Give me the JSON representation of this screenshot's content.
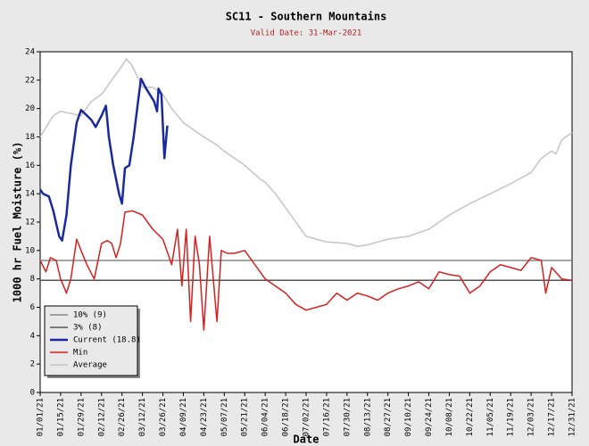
{
  "chart_data": {
    "type": "line",
    "title": "SC11 - Southern Mountains",
    "subtitle": "Valid Date: 31-Mar-2021",
    "y_label": "1000 hr Fuel Moisture (%)",
    "x_label": "Date",
    "ylim": [
      0,
      24
    ],
    "yticks": [
      0,
      2,
      4,
      6,
      8,
      10,
      12,
      14,
      16,
      18,
      20,
      22,
      24
    ],
    "xlim": [
      "01/01/21",
      "12/31/21"
    ],
    "xticks": [
      "01/01/21",
      "01/15/21",
      "01/29/21",
      "02/12/21",
      "02/26/21",
      "03/12/21",
      "03/26/21",
      "04/09/21",
      "04/23/21",
      "05/07/21",
      "05/21/21",
      "06/04/21",
      "06/18/21",
      "07/02/21",
      "07/16/21",
      "07/30/21",
      "08/13/21",
      "08/27/21",
      "09/10/21",
      "09/24/21",
      "10/08/21",
      "10/22/21",
      "11/05/21",
      "11/19/21",
      "12/03/21",
      "12/17/21",
      "12/31/21"
    ],
    "legend": "lower left",
    "series": [
      {
        "name": "10% (9)",
        "color": "#888888",
        "width": 1.5,
        "x": [
          "01/01/21",
          "12/31/21"
        ],
        "values": [
          9.3,
          9.3
        ]
      },
      {
        "name": "3% (8)",
        "color": "#555555",
        "width": 1.5,
        "x": [
          "01/01/21",
          "12/31/21"
        ],
        "values": [
          7.9,
          7.9
        ]
      },
      {
        "name": "Current (18.8)",
        "color": "#1a2a9c",
        "width": 2.5,
        "x": [
          "01/01/21",
          "01/03/21",
          "01/07/21",
          "01/10/21",
          "01/14/21",
          "01/16/21",
          "01/19/21",
          "01/22/21",
          "01/26/21",
          "01/29/21",
          "02/01/21",
          "02/05/21",
          "02/08/21",
          "02/12/21",
          "02/15/21",
          "02/17/21",
          "02/20/21",
          "02/24/21",
          "02/26/21",
          "02/28/21",
          "03/03/21",
          "03/06/21",
          "03/09/21",
          "03/11/21",
          "03/14/21",
          "03/17/21",
          "03/20/21",
          "03/22/21",
          "03/23/21",
          "03/25/21",
          "03/27/21",
          "03/29/21"
        ],
        "values": [
          14.3,
          14,
          13.8,
          12.8,
          11,
          10.7,
          12.5,
          16,
          19,
          19.9,
          19.6,
          19.2,
          18.7,
          19.5,
          20.2,
          18,
          16,
          14,
          13.3,
          15.8,
          16,
          18,
          20.5,
          22.1,
          21.5,
          21,
          20.5,
          19.8,
          21.4,
          21,
          16.5,
          18.8
        ]
      },
      {
        "name": "Min",
        "color": "#d42020",
        "width": 1.5,
        "x": [
          "01/01/21",
          "01/05/21",
          "01/08/21",
          "01/12/21",
          "01/15/21",
          "01/19/21",
          "01/22/21",
          "01/26/21",
          "01/29/21",
          "02/02/21",
          "02/07/21",
          "02/12/21",
          "02/16/21",
          "02/19/21",
          "02/22/21",
          "02/25/21",
          "02/28/21",
          "03/05/21",
          "03/12/21",
          "03/19/21",
          "03/26/21",
          "04/01/21",
          "04/05/21",
          "04/08/21",
          "04/11/21",
          "04/14/21",
          "04/17/21",
          "04/20/21",
          "04/23/21",
          "04/27/21",
          "05/02/21",
          "05/05/21",
          "05/09/21",
          "05/14/21",
          "05/21/21",
          "05/28/21",
          "06/04/21",
          "06/11/21",
          "06/18/21",
          "06/25/21",
          "07/02/21",
          "07/09/21",
          "07/16/21",
          "07/23/21",
          "07/30/21",
          "08/06/21",
          "08/13/21",
          "08/20/21",
          "08/27/21",
          "09/03/21",
          "09/10/21",
          "09/17/21",
          "09/24/21",
          "10/01/21",
          "10/08/21",
          "10/15/21",
          "10/22/21",
          "10/29/21",
          "11/05/21",
          "11/12/21",
          "11/19/21",
          "11/26/21",
          "12/03/21",
          "12/10/21",
          "12/13/21",
          "12/17/21",
          "12/24/21",
          "12/31/21"
        ],
        "values": [
          9.3,
          8.5,
          9.5,
          9.3,
          8,
          7,
          8,
          10.8,
          10,
          9,
          8,
          10.5,
          10.7,
          10.5,
          9.5,
          10.5,
          12.7,
          12.8,
          12.5,
          11.5,
          10.8,
          9,
          11.5,
          7.5,
          11.5,
          5,
          11,
          9,
          4.4,
          11,
          5,
          10,
          9.8,
          9.8,
          10,
          9,
          8,
          7.5,
          7,
          6.2,
          5.8,
          6,
          6.2,
          7,
          6.5,
          7,
          6.8,
          6.5,
          7,
          7.3,
          7.5,
          7.8,
          7.3,
          8.5,
          8.3,
          8.2,
          7,
          7.5,
          8.5,
          9,
          8.8,
          8.6,
          9.5,
          9.3,
          7,
          8.8,
          8,
          7.9
        ]
      },
      {
        "name": "Average",
        "color": "#c4c4c4",
        "width": 1.5,
        "x": [
          "01/01/21",
          "01/10/21",
          "01/15/21",
          "01/29/21",
          "02/05/21",
          "02/12/21",
          "02/19/21",
          "02/26/21",
          "03/01/21",
          "03/05/21",
          "03/12/21",
          "03/19/21",
          "03/26/21",
          "04/01/21",
          "04/09/21",
          "04/16/21",
          "04/23/21",
          "05/01/21",
          "05/07/21",
          "05/14/21",
          "05/21/21",
          "06/01/21",
          "06/04/21",
          "06/11/21",
          "06/18/21",
          "06/25/21",
          "07/02/21",
          "07/09/21",
          "07/16/21",
          "07/30/21",
          "08/06/21",
          "08/13/21",
          "08/20/21",
          "08/27/21",
          "09/10/21",
          "09/24/21",
          "10/08/21",
          "10/22/21",
          "11/05/21",
          "11/19/21",
          "12/03/21",
          "12/10/21",
          "12/17/21",
          "12/20/21",
          "12/24/21",
          "12/31/21"
        ],
        "values": [
          18,
          19.5,
          19.8,
          19.5,
          20.5,
          21,
          22,
          23,
          23.5,
          23,
          21.5,
          21.5,
          21,
          20,
          19,
          18.5,
          18,
          17.5,
          17,
          16.5,
          16,
          15,
          14.8,
          14,
          13,
          12,
          11,
          10.8,
          10.6,
          10.5,
          10.3,
          10.4,
          10.6,
          10.8,
          11,
          11.5,
          12.5,
          13.3,
          14,
          14.7,
          15.5,
          16.5,
          17,
          16.8,
          17.8,
          18.3
        ]
      }
    ]
  }
}
